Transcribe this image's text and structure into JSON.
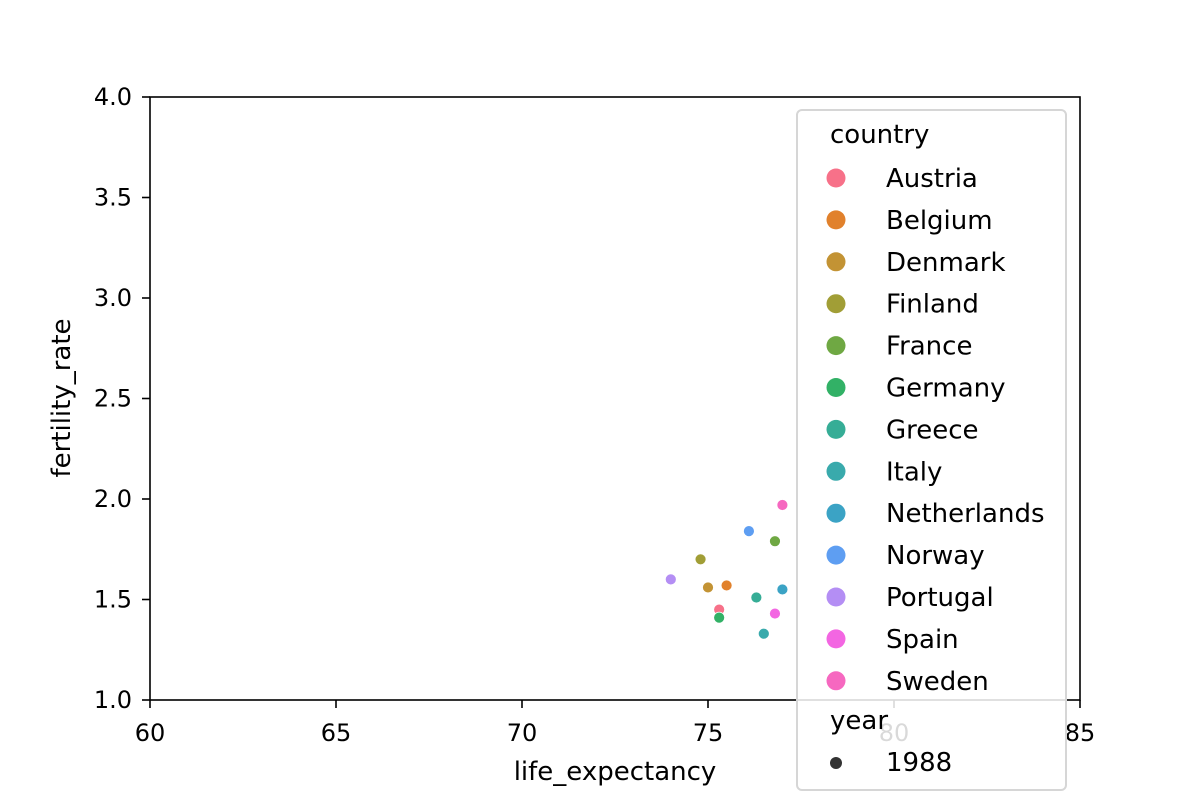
{
  "chart_data": {
    "type": "scatter",
    "title": "",
    "xlabel": "life_expectancy",
    "ylabel": "fertility_rate",
    "xlim": [
      60,
      85
    ],
    "ylim": [
      1.0,
      4.0
    ],
    "xticks": [
      "60",
      "65",
      "70",
      "75",
      "80",
      "85"
    ],
    "yticks": [
      "1.0",
      "1.5",
      "2.0",
      "2.5",
      "3.0",
      "3.5",
      "4.0"
    ],
    "grid": false,
    "legend_placement": "upper right",
    "legend_hue_title": "country",
    "legend_size_title": "year",
    "legend_size_entries": [
      "1988"
    ],
    "series": [
      {
        "name": "Austria",
        "color": "#f77189",
        "x": 75.3,
        "y": 1.45
      },
      {
        "name": "Belgium",
        "color": "#e1812c",
        "x": 75.5,
        "y": 1.57
      },
      {
        "name": "Denmark",
        "color": "#c39334",
        "x": 75.0,
        "y": 1.56
      },
      {
        "name": "Finland",
        "color": "#a19e36",
        "x": 74.8,
        "y": 1.7
      },
      {
        "name": "France",
        "color": "#6fa843",
        "x": 76.8,
        "y": 1.79
      },
      {
        "name": "Germany",
        "color": "#32b166",
        "x": 75.3,
        "y": 1.41
      },
      {
        "name": "Greece",
        "color": "#36ad96",
        "x": 76.3,
        "y": 1.51
      },
      {
        "name": "Italy",
        "color": "#39aaac",
        "x": 76.5,
        "y": 1.33
      },
      {
        "name": "Netherlands",
        "color": "#3ba3c5",
        "x": 77.0,
        "y": 1.55
      },
      {
        "name": "Norway",
        "color": "#5e9ef2",
        "x": 76.1,
        "y": 1.84
      },
      {
        "name": "Portugal",
        "color": "#b48ef4",
        "x": 74.0,
        "y": 1.6
      },
      {
        "name": "Spain",
        "color": "#f366e2",
        "x": 76.8,
        "y": 1.43
      },
      {
        "name": "Sweden",
        "color": "#f668c0",
        "x": 77.0,
        "y": 1.97
      }
    ]
  }
}
